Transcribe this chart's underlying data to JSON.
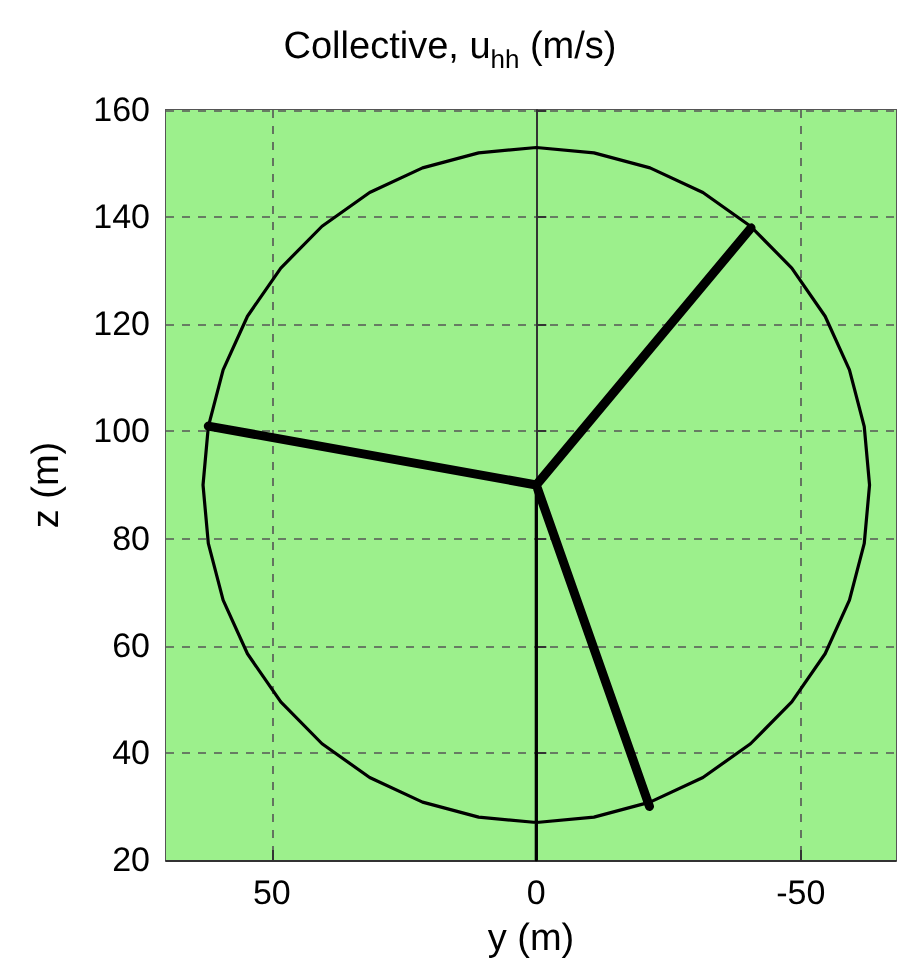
{
  "chart_data": {
    "type": "line",
    "title": "Collective, u$_{hh}$ (m/s)",
    "xlabel": "y (m)",
    "ylabel": "z (m)",
    "xlim": [
      70,
      -68
    ],
    "xticks": [
      50,
      0,
      -50
    ],
    "ylim": [
      20,
      160
    ],
    "yticks": [
      20,
      40,
      60,
      80,
      100,
      120,
      140,
      160
    ],
    "grid": true,
    "line_style": "solid",
    "marker": "none",
    "bands": [
      {
        "axis": "y",
        "from": 20,
        "to": 160,
        "color": "#9cf08c"
      }
    ],
    "series": [
      {
        "color": "#000000",
        "x": [
          0,
          0,
          10.9,
          21.5,
          31.5,
          40.5,
          48.3,
          54.6,
          59.2,
          62.0,
          63,
          62.0,
          59.2,
          54.6,
          48.3,
          40.5,
          31.5,
          21.5,
          10.9,
          0,
          -10.9,
          -21.5,
          -31.5,
          -40.5,
          -48.3,
          -54.6,
          -59.2,
          -62.0,
          -63,
          -62.0,
          -59.2,
          -54.6,
          -48.3,
          -40.5,
          -31.5,
          -21.5,
          -10.9,
          0,
          0
        ],
        "values": [
          90,
          27,
          28.0,
          30.8,
          35.4,
          41.7,
          49.5,
          58.5,
          68.5,
          79.1,
          90,
          100.9,
          111.5,
          121.5,
          130.5,
          138.3,
          144.6,
          149.2,
          152.0,
          153,
          152.0,
          149.2,
          144.6,
          138.3,
          130.5,
          121.5,
          111.5,
          100.9,
          90,
          79.1,
          68.5,
          58.5,
          49.5,
          41.7,
          35.4,
          30.8,
          28.0,
          27,
          20
        ]
      },
      {
        "color": "#000000",
        "x": [
          62,
          0,
          -40.6,
          0,
          -21.4
        ],
        "values": [
          101,
          90,
          138,
          90,
          30
        ]
      }
    ]
  }
}
